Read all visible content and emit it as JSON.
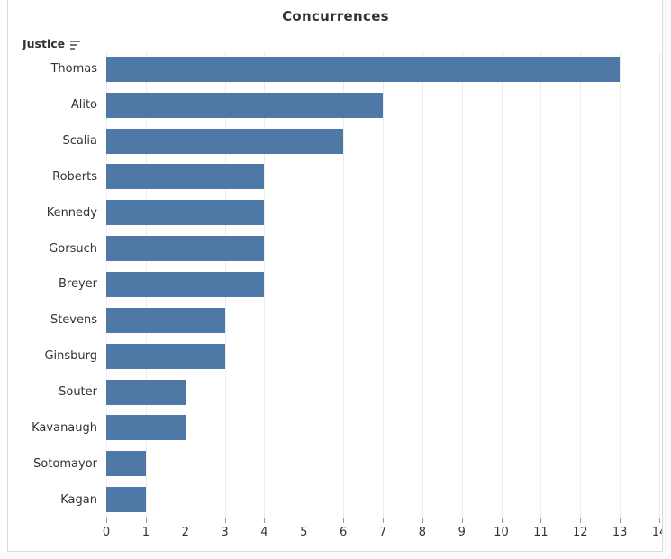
{
  "title": "Concurrences",
  "row_header": {
    "label": "Justice",
    "sort": "descending"
  },
  "chart_data": {
    "type": "bar",
    "orientation": "horizontal",
    "title": "Concurrences",
    "xlabel": "",
    "ylabel": "Justice",
    "categories": [
      "Thomas",
      "Alito",
      "Scalia",
      "Roberts",
      "Kennedy",
      "Gorsuch",
      "Breyer",
      "Stevens",
      "Ginsburg",
      "Souter",
      "Kavanaugh",
      "Sotomayor",
      "Kagan"
    ],
    "values": [
      13,
      7,
      6,
      4,
      4,
      4,
      4,
      3,
      3,
      2,
      2,
      1,
      1
    ],
    "xlim": [
      0,
      14
    ],
    "x_ticks": [
      0,
      1,
      2,
      3,
      4,
      5,
      6,
      7,
      8,
      9,
      10,
      11,
      12,
      13,
      14
    ],
    "grid": true,
    "legend": false
  },
  "colors": {
    "bar": "#4e79a7",
    "grid": "#ededed",
    "axis_line": "#d4d4d4",
    "tick": "#9a9a9a",
    "text": "#333333",
    "border": "#d9d9d9"
  }
}
